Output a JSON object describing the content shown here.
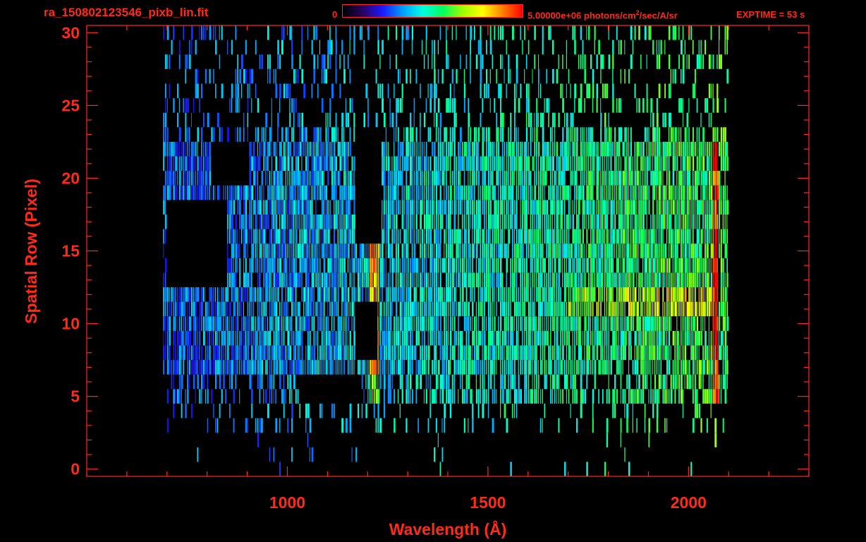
{
  "header": {
    "filename": "ra_150802123546_pixb_lin.fit",
    "colorbar_min": "0",
    "colorbar_max_value": "5.00000e+06 photons/cm",
    "colorbar_max_sup": "2",
    "colorbar_max_units": "/sec/A/sr",
    "exptime": "EXPTIME = 53 s"
  },
  "colors": {
    "axis": "#ff2a1a",
    "background": "#000000",
    "colormap": [
      "#000000",
      "#2a0060",
      "#1a1aff",
      "#00a0ff",
      "#00ffe0",
      "#00ff60",
      "#a0ff00",
      "#ffff00",
      "#ff8000",
      "#ff0000"
    ]
  },
  "chart_data": {
    "type": "heatmap",
    "title": "ra_150802123546_pixb_lin.fit",
    "xlabel": "Wavelength (Å)",
    "ylabel": "Spatial Row (Pixel)",
    "xlim": [
      500,
      2300
    ],
    "ylim": [
      -0.5,
      30.5
    ],
    "xticks": [
      1000,
      1500,
      2000
    ],
    "yticks": [
      0,
      5,
      10,
      15,
      20,
      25,
      30
    ],
    "x_minor_step": 100,
    "y_minor_step": 1,
    "colorbar_range": [
      0,
      5000000
    ],
    "colorbar_units": "photons/cm2/sec/A/sr",
    "exptime_s": 53,
    "data_extent_x": [
      690,
      2100
    ],
    "features": [
      {
        "name": "Lyman-alpha line",
        "x": 1216,
        "rows": [
          5,
          23
        ],
        "peak_rows": [
          7,
          15
        ],
        "level": 0.85
      },
      {
        "name": "OI line",
        "x": 1304,
        "rows": [
          5,
          23
        ],
        "level": 0.45
      },
      {
        "name": "continuum band",
        "x": [
          1700,
          2060
        ],
        "rows": [
          11,
          12
        ],
        "level": 0.8
      },
      {
        "name": "long-wavelength edge",
        "x": 2065,
        "rows": [
          5,
          22
        ],
        "level": 0.95
      }
    ],
    "masked_regions": [
      {
        "x": [
          700,
          845
        ],
        "rows": [
          13,
          18
        ]
      },
      {
        "x": [
          810,
          900
        ],
        "rows": [
          20,
          22
        ]
      },
      {
        "x": [
          1170,
          1230
        ],
        "rows": [
          16,
          23
        ]
      },
      {
        "x": [
          1170,
          1220
        ],
        "rows": [
          8,
          11
        ]
      },
      {
        "x": [
          1040,
          1180
        ],
        "rows": [
          5,
          6
        ]
      }
    ]
  }
}
